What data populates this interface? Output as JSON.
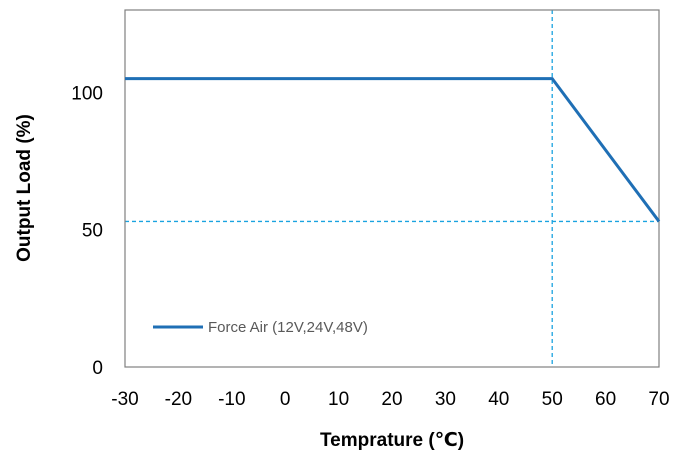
{
  "chart_data": {
    "type": "line",
    "title": "",
    "xlabel": "Temprature (℃)",
    "ylabel": "Output  Load (%)",
    "xlim": [
      -30,
      70
    ],
    "ylim": [
      0,
      130
    ],
    "x_ticks": [
      -30,
      -20,
      -10,
      0,
      10,
      20,
      30,
      40,
      50,
      60,
      70
    ],
    "y_ticks": [
      0,
      50,
      100
    ],
    "grid": false,
    "legend_position": "bottom-left",
    "series": [
      {
        "name": "Force Air (12V,24V,48V)",
        "color": "#1f6fb5",
        "x": [
          -30,
          50,
          70
        ],
        "y": [
          105,
          105,
          53
        ]
      }
    ],
    "reference_lines": [
      {
        "orientation": "vertical",
        "x": 50,
        "color": "#1aa3e0",
        "style": "dashed"
      },
      {
        "orientation": "horizontal",
        "y": 53,
        "color": "#1aa3e0",
        "style": "dashed"
      }
    ]
  }
}
